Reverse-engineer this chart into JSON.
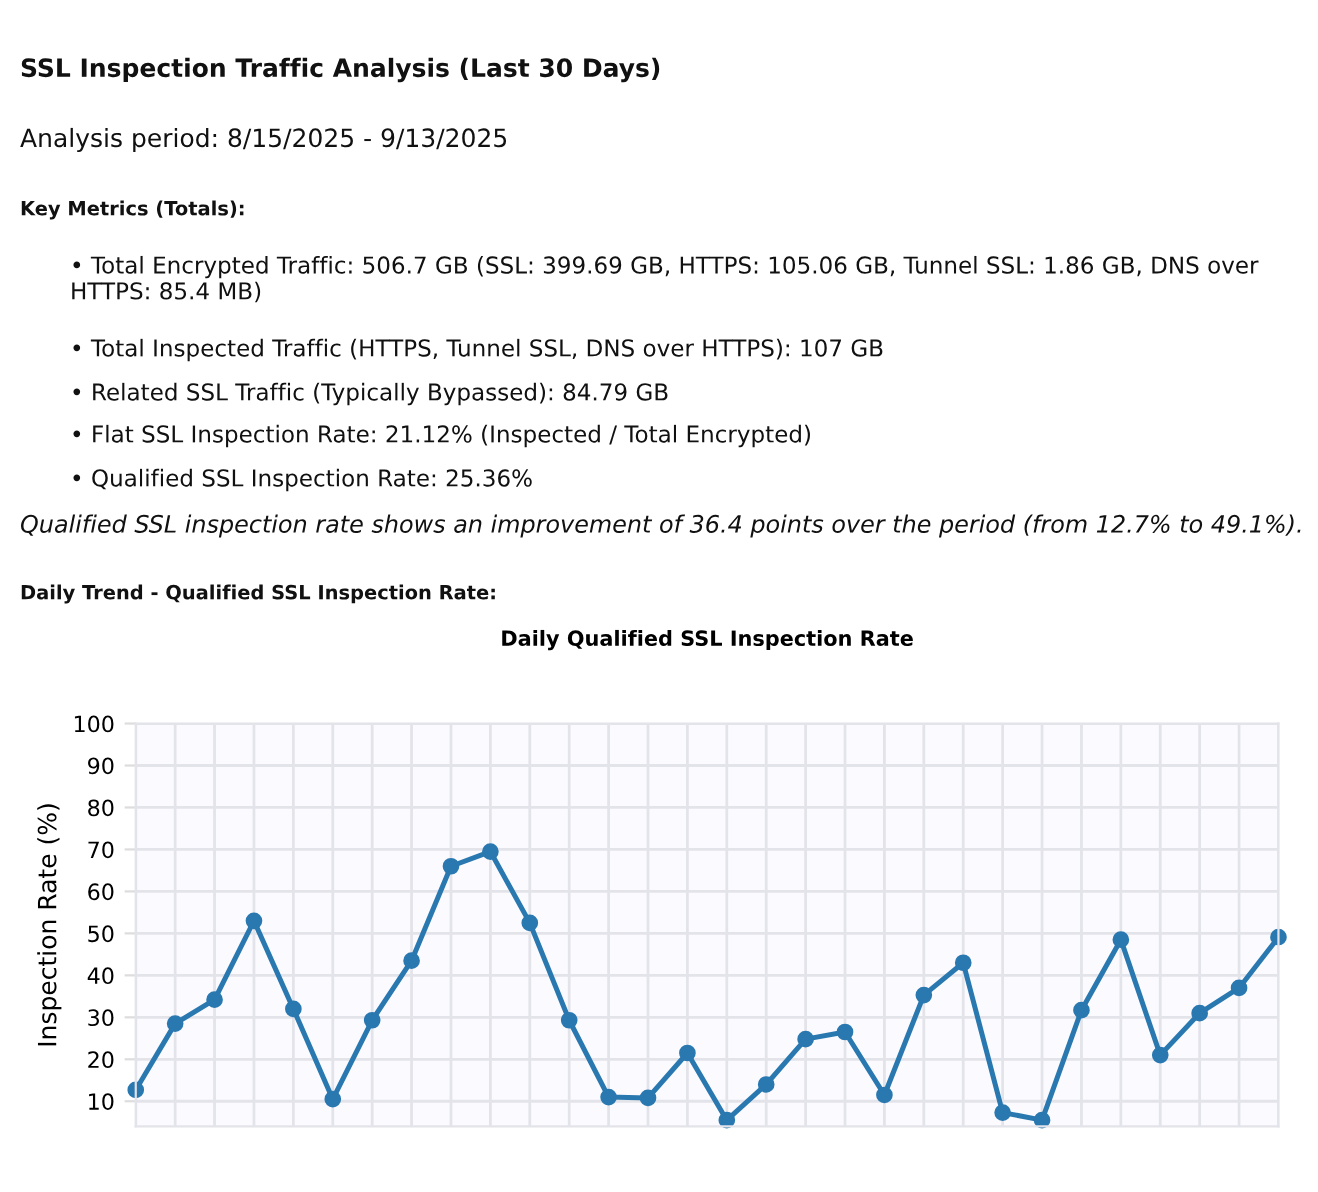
{
  "chart_data": {
    "type": "line",
    "title": "Daily Qualified SSL Inspection Rate",
    "ylabel": "Inspection Rate (%)",
    "annotations": [
      "SSL Inspection Traffic Analysis (Last 30 Days)",
      "Analysis period: 8/15/2025 - 9/13/2025",
      "Key Metrics (Totals):",
      "• Total Encrypted Traffic: 506.7 GB (SSL: 399.69 GB, HTTPS: 105.06 GB, Tunnel SSL: 1.86 GB, DNS over HTTPS: 85.4 MB)",
      "• Total Inspected Traffic (HTTPS, Tunnel SSL, DNS over HTTPS): 107 GB",
      "• Related SSL Traffic (Typically Bypassed): 84.79 GB",
      "• Flat SSL Inspection Rate: 21.12% (Inspected / Total Encrypted)",
      "• Qualified SSL Inspection Rate: 25.36%",
      "Qualified SSL inspection rate shows an improvement of 36.4 points over the period (from 12.7% to 49.1%).",
      "Daily Trend - Qualified SSL Inspection Rate:"
    ],
    "categories": [
      null,
      null,
      null,
      null,
      null,
      null,
      null,
      null,
      null,
      null,
      null,
      null,
      null,
      null,
      null,
      null,
      null,
      null,
      null,
      null,
      null,
      null,
      null,
      null,
      null,
      null,
      null,
      null,
      null,
      null
    ],
    "series": [
      {
        "color": "#2a78b0",
        "values": [
          12.7,
          28.5,
          34.2,
          53,
          32,
          10.5,
          29.3,
          43.5,
          66,
          69.5,
          52.5,
          29.3,
          11,
          10.8,
          21.5,
          5.5,
          14,
          24.8,
          26.5,
          11.5,
          35.3,
          43,
          7.3,
          5.5,
          31.7,
          48.5,
          21,
          31,
          37,
          49.1
        ]
      }
    ],
    "ylim": [
      4,
      100
    ],
    "yticks": [
      10,
      20,
      30,
      40,
      50,
      60,
      70,
      80,
      90,
      100
    ],
    "grid": true,
    "marker": "circle",
    "line_style": "solid",
    "tick_labels": "y"
  }
}
